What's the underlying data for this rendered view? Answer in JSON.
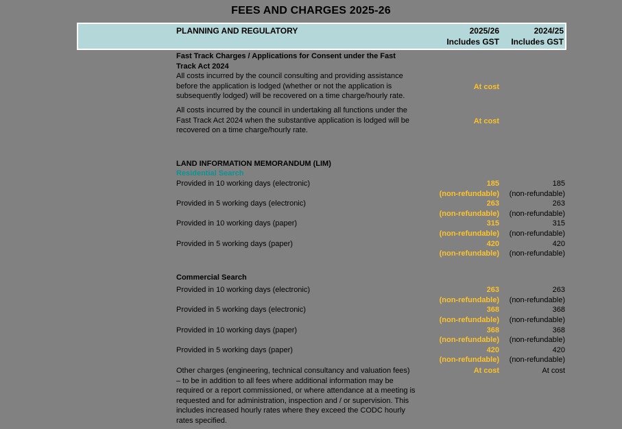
{
  "page_title": "FEES AND CHARGES 2025-26",
  "colors": {
    "page_bg": "#818181",
    "header_bg": "#b4d8da",
    "accent_yellow": "#fcc22b",
    "teal_text": "#0f9292"
  },
  "table": {
    "header": {
      "title": "PLANNING AND REGULATORY",
      "current": {
        "year": "2025/26",
        "sub": "Includes GST"
      },
      "previous": {
        "year": "2024/25",
        "sub": "Includes GST"
      }
    },
    "rows": [
      {
        "type": "section-heading",
        "text": "Fast Track Charges / Applications for Consent under the Fast Track Act 2024"
      },
      {
        "type": "para",
        "text": "All costs incurred by the council consulting and providing assistance before the application is lodged (whether or not the application is subsequently lodged) will be recovered on a time charge/hourly rate.",
        "current": "At cost",
        "previous": "",
        "gap_after": 6
      },
      {
        "type": "para",
        "text": "All costs incurred by the council in undertaking all functions under the Fast Track Act 2024 when the substantive application is lodged will be recovered on a time charge/hourly rate.",
        "current": "At cost",
        "previous": "",
        "gap_after": 34
      },
      {
        "type": "heading",
        "text": "LAND INFORMATION MEMORANDUM (LIM)"
      },
      {
        "type": "subheading-teal",
        "text": "Residential Search"
      },
      {
        "type": "fee",
        "label": "Provided in 10 working days (electronic)",
        "current": "185",
        "current_note": "(non-refundable)",
        "previous": "185",
        "previous_note": "(non-refundable)"
      },
      {
        "type": "fee",
        "label": "Provided in 5 working days (electronic)",
        "current": "263",
        "current_note": "(non-refundable)",
        "previous": "263",
        "previous_note": "(non-refundable)"
      },
      {
        "type": "fee",
        "label": "Provided in 10 working days (paper)",
        "current": "315",
        "current_note": "(non-refundable)",
        "previous": "315",
        "previous_note": "(non-refundable)"
      },
      {
        "type": "fee",
        "label": "Provided in 5 working days (paper)",
        "current": "420",
        "current_note": "(non-refundable)",
        "previous": "420",
        "previous_note": "(non-refundable)",
        "gap_after": 20
      },
      {
        "type": "heading",
        "text": "Commercial Search",
        "gap_after": 4
      },
      {
        "type": "fee",
        "label": "Provided in 10 working days (electronic)",
        "current": "263",
        "current_note": "(non-refundable)",
        "previous": "263",
        "previous_note": "(non-refundable)"
      },
      {
        "type": "fee",
        "label": "Provided in 5 working days (electronic)",
        "current": "368",
        "current_note": "(non-refundable)",
        "previous": "368",
        "previous_note": "(non-refundable)"
      },
      {
        "type": "fee",
        "label": "Provided in 10 working days (paper)",
        "current": "368",
        "current_note": "(non-refundable)",
        "previous": "368",
        "previous_note": "(non-refundable)"
      },
      {
        "type": "fee",
        "label": "Provided in 5 working days (paper)",
        "current": "420",
        "current_note": "(non-refundable)",
        "previous": "420",
        "previous_note": "(non-refundable)",
        "gap_after": 1
      },
      {
        "type": "para",
        "align_top": true,
        "text": "Other charges (engineering, technical consultancy and valuation fees) – to be in addition to all fees where additional information may be required or a report commissioned, or where attendance at a meeting is requested and for administration, inspection and / or supervision. This includes increased hourly rates where they exceed the CODC hourly rates specified.",
        "current": "At cost",
        "previous": "At cost"
      }
    ]
  }
}
